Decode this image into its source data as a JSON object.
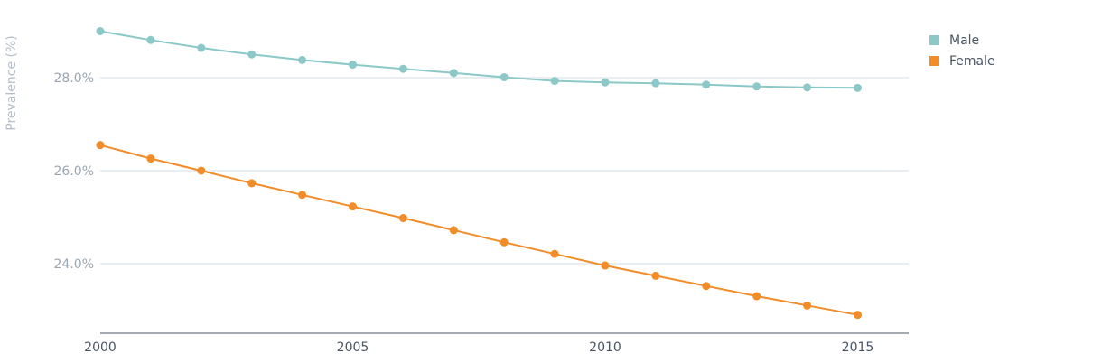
{
  "chart_data": {
    "type": "line",
    "title": "",
    "xlabel": "",
    "ylabel": "Prevalence (%)",
    "xlim": [
      2000,
      2016
    ],
    "ylim": [
      22.5,
      29.5
    ],
    "x_ticks": [
      "2000",
      "2005",
      "2010",
      "2015"
    ],
    "y_ticks": [
      "24.0%",
      "26.0%",
      "28.0%"
    ],
    "grid": "horizontal",
    "legend_position": "top-right",
    "x": [
      2000,
      2001,
      2002,
      2003,
      2004,
      2005,
      2006,
      2007,
      2008,
      2009,
      2010,
      2011,
      2012,
      2013,
      2014,
      2015
    ],
    "series": [
      {
        "name": "Male",
        "color": "#8cc8c8",
        "values": [
          29.0,
          28.81,
          28.64,
          28.5,
          28.38,
          28.28,
          28.19,
          28.1,
          28.01,
          27.93,
          27.9,
          27.88,
          27.85,
          27.81,
          27.79,
          27.78
        ]
      },
      {
        "name": "Female",
        "color": "#f28c28",
        "values": [
          26.55,
          26.26,
          26.0,
          25.73,
          25.48,
          25.23,
          24.98,
          24.72,
          24.46,
          24.21,
          23.96,
          23.74,
          23.52,
          23.3,
          23.1,
          22.9
        ]
      }
    ]
  }
}
